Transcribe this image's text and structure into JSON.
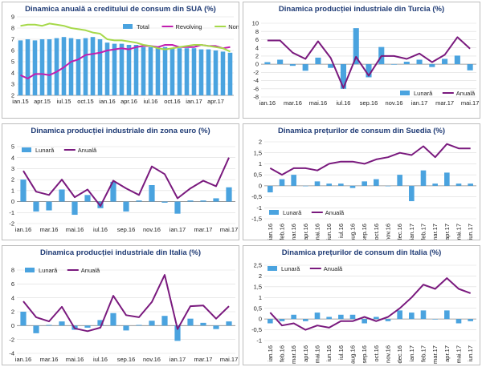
{
  "colors": {
    "bar": "#4aa3df",
    "annual": "#7a1a7e",
    "revolving": "#c21fb0",
    "nonrevolving": "#a6d94a",
    "grid": "#dcdcdc",
    "axis": "#8c8c8c"
  },
  "chart_data": [
    {
      "id": "us-credit",
      "type": "bar+line",
      "title": "Dinamica anuală a creditului de consum din SUA (%)",
      "ylim": [
        2,
        9
      ],
      "yticks": [
        2,
        3,
        4,
        5,
        6,
        7,
        8,
        9
      ],
      "xticks": [
        "ian.15",
        "apr.15",
        "iul.15",
        "oct.15",
        "ian.16",
        "apr.16",
        "iul.16",
        "oct.16",
        "ian.17",
        "apr.17"
      ],
      "xtick_indices": [
        0,
        3,
        6,
        9,
        12,
        15,
        18,
        21,
        24,
        27
      ],
      "legend": {
        "position": "top-right",
        "entries": [
          "Total",
          "Revolving",
          "Nonrevolving"
        ]
      },
      "bars": {
        "name": "Total",
        "values": [
          6.9,
          7.0,
          6.9,
          7.0,
          7.0,
          7.1,
          7.2,
          7.1,
          7.0,
          7.1,
          7.2,
          7.0,
          6.7,
          6.6,
          6.6,
          6.5,
          6.5,
          6.3,
          6.3,
          6.3,
          6.3,
          6.2,
          6.2,
          6.2,
          6.2,
          6.1,
          6.1,
          6.0,
          5.9,
          5.8
        ]
      },
      "lines": [
        {
          "name": "Revolving",
          "color": "revolving",
          "values": [
            3.8,
            3.5,
            3.9,
            3.9,
            3.8,
            4.1,
            4.5,
            5.0,
            5.2,
            5.6,
            5.7,
            5.8,
            6.0,
            6.1,
            6.2,
            6.1,
            6.3,
            6.4,
            6.4,
            6.3,
            6.5,
            6.5,
            6.3,
            6.3,
            6.3,
            6.5,
            6.4,
            6.4,
            6.2,
            6.3
          ]
        },
        {
          "name": "Nonrevolving",
          "color": "nonrevolving",
          "values": [
            8.2,
            8.3,
            8.3,
            8.2,
            8.4,
            8.3,
            8.2,
            8.0,
            7.9,
            7.8,
            7.6,
            7.5,
            7.0,
            6.9,
            6.9,
            6.8,
            6.7,
            6.5,
            6.4,
            6.2,
            6.1,
            6.2,
            6.3,
            6.4,
            6.5,
            6.5,
            6.4,
            6.3,
            6.2,
            5.9
          ]
        }
      ]
    },
    {
      "id": "turkey-ip",
      "type": "bar+line",
      "title": "Dinamica producției industriale din Turcia (%)",
      "ylim": [
        -8,
        10
      ],
      "yticks": [
        -8,
        -6,
        -4,
        -2,
        0,
        2,
        4,
        6,
        8,
        10
      ],
      "xticks": [
        "ian.16",
        "mar.16",
        "mai.16",
        "iul.16",
        "sep.16",
        "nov.16",
        "ian.17",
        "mar.17",
        "mai.17"
      ],
      "xtick_indices": [
        0,
        2,
        4,
        6,
        8,
        10,
        12,
        14,
        16
      ],
      "legend": {
        "position": "bottom-right",
        "entries": [
          "Lunară",
          "Anuală"
        ]
      },
      "bars": {
        "name": "Lunară",
        "values": [
          0.5,
          1.1,
          -0.4,
          -1.6,
          1.6,
          -0.9,
          -6.0,
          8.8,
          -3.2,
          4.2,
          -0.1,
          0.6,
          1.1,
          -0.7,
          1.3,
          2.1,
          -1.5
        ]
      },
      "lines": [
        {
          "name": "Anuală",
          "color": "annual",
          "values": [
            5.8,
            5.8,
            2.8,
            1.3,
            5.6,
            1.5,
            -5.8,
            1.8,
            -2.8,
            2.0,
            2.0,
            1.3,
            2.6,
            0.5,
            2.3,
            6.6,
            3.8
          ]
        }
      ]
    },
    {
      "id": "euro-ip",
      "type": "bar+line",
      "title": "Dinamica producției industriale din zona euro (%)",
      "ylim": [
        -2,
        5
      ],
      "yticks": [
        -2,
        -1,
        0,
        1,
        2,
        3,
        4,
        5
      ],
      "xticks": [
        "ian.16",
        "mar.16",
        "mai.16",
        "iul.16",
        "sep.16",
        "nov.16",
        "ian.17",
        "mar.17",
        "mai.17"
      ],
      "xtick_indices": [
        0,
        2,
        4,
        6,
        8,
        10,
        12,
        14,
        16
      ],
      "legend": {
        "position": "top-left",
        "entries": [
          "Lunară",
          "Anuală"
        ]
      },
      "bars": {
        "name": "Lunară",
        "values": [
          2.0,
          -0.9,
          -0.8,
          1.1,
          -1.2,
          0.6,
          -0.6,
          1.8,
          -0.9,
          0.1,
          1.5,
          -0.1,
          -1.1,
          0.1,
          0.1,
          0.3,
          1.3
        ]
      },
      "lines": [
        {
          "name": "Anuală",
          "color": "annual",
          "values": [
            2.8,
            0.9,
            0.6,
            2.0,
            0.4,
            1.1,
            -0.4,
            1.9,
            1.2,
            0.6,
            3.2,
            2.5,
            0.3,
            1.2,
            1.9,
            1.4,
            4.0
          ]
        }
      ]
    },
    {
      "id": "sweden-cpi",
      "type": "bar+line",
      "title": "Dinamica prețurilor de consum din Suedia (%)",
      "ylim": [
        -1.5,
        2
      ],
      "yticks": [
        -1.5,
        -1,
        -0.5,
        0,
        0.5,
        1,
        1.5,
        2
      ],
      "ytick_labels": [
        "-1,5",
        "-1",
        "-0,5",
        "0",
        "0,5",
        "1",
        "1,5",
        "2"
      ],
      "xticks": [
        "ian.16",
        "feb.16",
        "mar.16",
        "apr.16",
        "mai.16",
        "iun.16",
        "iul.16",
        "aug.16",
        "sep.16",
        "oct.16",
        "nov.16",
        "dec.16",
        "ian.17",
        "feb.17",
        "mar.17",
        "apr.17",
        "mai.17",
        "iun.17"
      ],
      "xtick_indices": [
        0,
        1,
        2,
        3,
        4,
        5,
        6,
        7,
        8,
        9,
        10,
        11,
        12,
        13,
        14,
        15,
        16,
        17
      ],
      "legend": {
        "position": "bottom-left",
        "entries": [
          "Lunară",
          "Anuală"
        ]
      },
      "bars": {
        "name": "Lunară",
        "values": [
          -0.3,
          0.3,
          0.5,
          0.0,
          0.2,
          0.1,
          0.1,
          -0.1,
          0.2,
          0.3,
          0.0,
          0.5,
          -0.7,
          0.7,
          0.1,
          0.6,
          0.1,
          0.1
        ]
      },
      "lines": [
        {
          "name": "Anuală",
          "color": "annual",
          "values": [
            0.8,
            0.5,
            0.8,
            0.8,
            0.7,
            1.0,
            1.1,
            1.1,
            1.0,
            1.2,
            1.3,
            1.5,
            1.4,
            1.8,
            1.3,
            1.9,
            1.7,
            1.7
          ]
        }
      ]
    },
    {
      "id": "italy-ip",
      "type": "bar+line",
      "title": "Dinamica producției industriale din Italia (%)",
      "ylim": [
        -4,
        8
      ],
      "yticks": [
        -4,
        -2,
        0,
        2,
        4,
        6,
        8
      ],
      "xticks": [
        "ian.16",
        "mar.16",
        "mai.16",
        "iul.16",
        "sep.16",
        "nov.16",
        "ian.17",
        "mar.17",
        "mai.17"
      ],
      "xtick_indices": [
        0,
        2,
        4,
        6,
        8,
        10,
        12,
        14,
        16
      ],
      "legend": {
        "position": "top-left",
        "entries": [
          "Lunară",
          "Anuală"
        ]
      },
      "bars": {
        "name": "Lunară",
        "values": [
          2.0,
          -1.1,
          0.1,
          0.6,
          -0.6,
          -0.3,
          0.8,
          1.8,
          -0.7,
          0.1,
          0.7,
          1.4,
          -2.2,
          1.0,
          0.4,
          -0.5,
          0.6
        ]
      },
      "lines": [
        {
          "name": "Anuală",
          "color": "annual",
          "values": [
            3.5,
            1.2,
            0.6,
            2.7,
            -0.4,
            -0.8,
            -0.3,
            4.3,
            1.5,
            1.2,
            3.4,
            7.3,
            -0.5,
            2.8,
            2.9,
            1.0,
            2.8
          ]
        }
      ]
    },
    {
      "id": "italy-cpi",
      "type": "bar+line",
      "title": "Dinamica prețurilor de consum din Italia (%)",
      "ylim": [
        -1,
        2.5
      ],
      "yticks": [
        -1,
        -0.5,
        0,
        0.5,
        1,
        1.5,
        2,
        2.5
      ],
      "ytick_labels": [
        "-1",
        "-0,5",
        "0",
        "0,5",
        "1",
        "1,5",
        "2",
        "2,5"
      ],
      "xticks": [
        "ian.16",
        "feb.16",
        "mar.16",
        "apr.16",
        "mai.16",
        "iun.16",
        "iul.16",
        "aug.16",
        "sep.16",
        "oct.16",
        "nov.16",
        "dec.16",
        "ian.17",
        "feb.17",
        "mar.17",
        "apr.17",
        "mai.17",
        "iun.17"
      ],
      "xtick_indices": [
        0,
        1,
        2,
        3,
        4,
        5,
        6,
        7,
        8,
        9,
        10,
        11,
        12,
        13,
        14,
        15,
        16,
        17
      ],
      "legend": {
        "position": "top-left",
        "entries": [
          "Lunară",
          "Anuală"
        ]
      },
      "bars": {
        "name": "Lunară",
        "values": [
          -0.2,
          -0.1,
          0.2,
          -0.1,
          0.3,
          0.1,
          0.2,
          0.2,
          -0.2,
          0.1,
          -0.1,
          0.4,
          0.3,
          0.4,
          0.0,
          0.4,
          -0.2,
          -0.1
        ]
      },
      "lines": [
        {
          "name": "Anuală",
          "color": "annual",
          "values": [
            0.3,
            -0.3,
            -0.2,
            -0.5,
            -0.3,
            -0.4,
            -0.1,
            -0.1,
            0.1,
            -0.1,
            0.1,
            0.5,
            1.0,
            1.6,
            1.4,
            1.9,
            1.4,
            1.2
          ]
        }
      ]
    }
  ]
}
